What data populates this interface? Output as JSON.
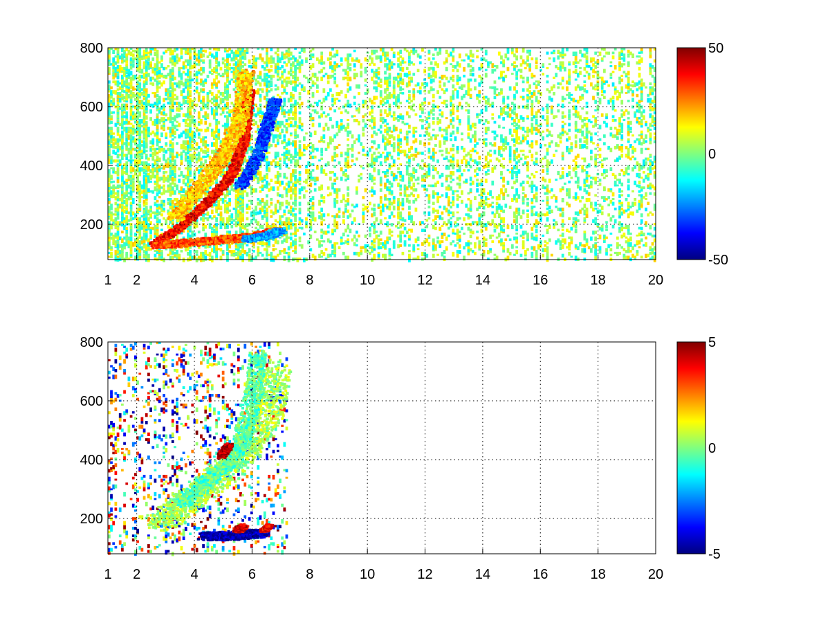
{
  "figure": {
    "background": "#ffffff"
  },
  "chart_data": [
    {
      "type": "heatmap",
      "title": "",
      "xlabel": "",
      "ylabel": "",
      "xlim": [
        1,
        20
      ],
      "ylim": [
        80,
        800
      ],
      "x_ticks": [
        1,
        2,
        4,
        6,
        8,
        10,
        12,
        14,
        16,
        18,
        20
      ],
      "y_ticks": [
        200,
        400,
        600,
        800
      ],
      "grid": true,
      "colormap": "jet",
      "colorbar": {
        "clim": [
          -50,
          50
        ],
        "ticks": [
          50,
          0,
          -50
        ],
        "position": "right"
      },
      "features": [
        {
          "name": "",
          "kind": "band",
          "path": [
            [
              2.6,
              130
            ],
            [
              3.5,
              190
            ],
            [
              4.5,
              280
            ],
            [
              5.3,
              370
            ],
            [
              5.7,
              480
            ],
            [
              5.9,
              650
            ]
          ],
          "value": 38,
          "width": 0.35
        },
        {
          "name": "",
          "kind": "band",
          "path": [
            [
              3.3,
              220
            ],
            [
              4.2,
              330
            ],
            [
              5.0,
              430
            ],
            [
              5.6,
              560
            ],
            [
              5.8,
              720
            ]
          ],
          "value": 18,
          "width": 0.55
        },
        {
          "name": "",
          "kind": "band",
          "path": [
            [
              5.6,
              330
            ],
            [
              6.2,
              430
            ],
            [
              6.6,
              560
            ],
            [
              6.8,
              620
            ]
          ],
          "value": -32,
          "width": 0.4
        },
        {
          "name": "",
          "kind": "band",
          "path": [
            [
              2.8,
              130
            ],
            [
              4.0,
              140
            ],
            [
              5.2,
              150
            ],
            [
              6.2,
              160
            ],
            [
              6.9,
              180
            ]
          ],
          "value": 30,
          "width": 0.5
        },
        {
          "name": "",
          "kind": "band",
          "path": [
            [
              5.8,
              150
            ],
            [
              6.5,
              160
            ],
            [
              7.0,
              180
            ]
          ],
          "value": -22,
          "width": 0.4
        }
      ],
      "noise": {
        "x_range": [
          1,
          20
        ],
        "density": 0.14,
        "value_range": [
          -15,
          18
        ]
      }
    },
    {
      "type": "heatmap",
      "title": "",
      "xlabel": "",
      "ylabel": "",
      "xlim": [
        1,
        20
      ],
      "ylim": [
        80,
        800
      ],
      "x_ticks": [
        1,
        2,
        4,
        6,
        8,
        10,
        12,
        14,
        16,
        18,
        20
      ],
      "y_ticks": [
        200,
        400,
        600,
        800
      ],
      "grid": true,
      "colormap": "jet",
      "colorbar": {
        "clim": [
          -5,
          5
        ],
        "ticks": [
          5,
          0,
          -5
        ],
        "position": "right"
      },
      "features": [
        {
          "name": "",
          "kind": "band",
          "path": [
            [
              2.8,
              180
            ],
            [
              3.8,
              260
            ],
            [
              4.8,
              340
            ],
            [
              5.8,
              430
            ],
            [
              6.6,
              560
            ],
            [
              6.8,
              720
            ]
          ],
          "value": 0.4,
          "width": 1.1
        },
        {
          "name": "",
          "kind": "band",
          "path": [
            [
              3.5,
              250
            ],
            [
              4.5,
              330
            ],
            [
              5.5,
              420
            ],
            [
              6.0,
              600
            ],
            [
              6.2,
              760
            ]
          ],
          "value": -0.4,
          "width": 0.6
        },
        {
          "name": "",
          "kind": "band",
          "path": [
            [
              4.4,
              140
            ],
            [
              5.0,
              140
            ],
            [
              5.6,
              145
            ],
            [
              6.3,
              150
            ]
          ],
          "value": -4.6,
          "width": 0.6
        },
        {
          "name": "",
          "kind": "patch",
          "path": [
            [
              4.9,
              410
            ],
            [
              5.2,
              450
            ]
          ],
          "value": 4.5,
          "width": 0.3
        },
        {
          "name": "",
          "kind": "patch",
          "path": [
            [
              5.5,
              160
            ],
            [
              5.7,
              175
            ]
          ],
          "value": 4.2,
          "width": 0.3
        },
        {
          "name": "",
          "kind": "patch",
          "path": [
            [
              6.4,
              160
            ],
            [
              6.6,
              175
            ]
          ],
          "value": 4.0,
          "width": 0.25
        }
      ],
      "noise": {
        "x_range": [
          1,
          7.2
        ],
        "density": 0.04,
        "value_range": [
          -5,
          5
        ]
      }
    }
  ]
}
